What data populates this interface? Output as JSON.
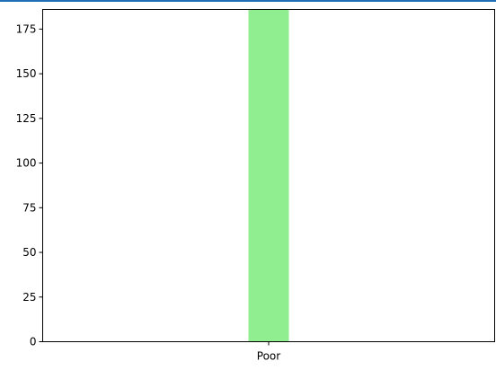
{
  "window": {
    "accent_line_color": "#1f6fb4"
  },
  "chart_data": {
    "type": "bar",
    "categories": [
      "Poor"
    ],
    "values": [
      186
    ],
    "bar_color": "#90ee90",
    "ylim": [
      0,
      186
    ],
    "yticks": [
      0,
      25,
      50,
      75,
      100,
      125,
      150,
      175
    ],
    "title": "",
    "xlabel": "",
    "ylabel": "",
    "grid": false,
    "legend": "none"
  }
}
